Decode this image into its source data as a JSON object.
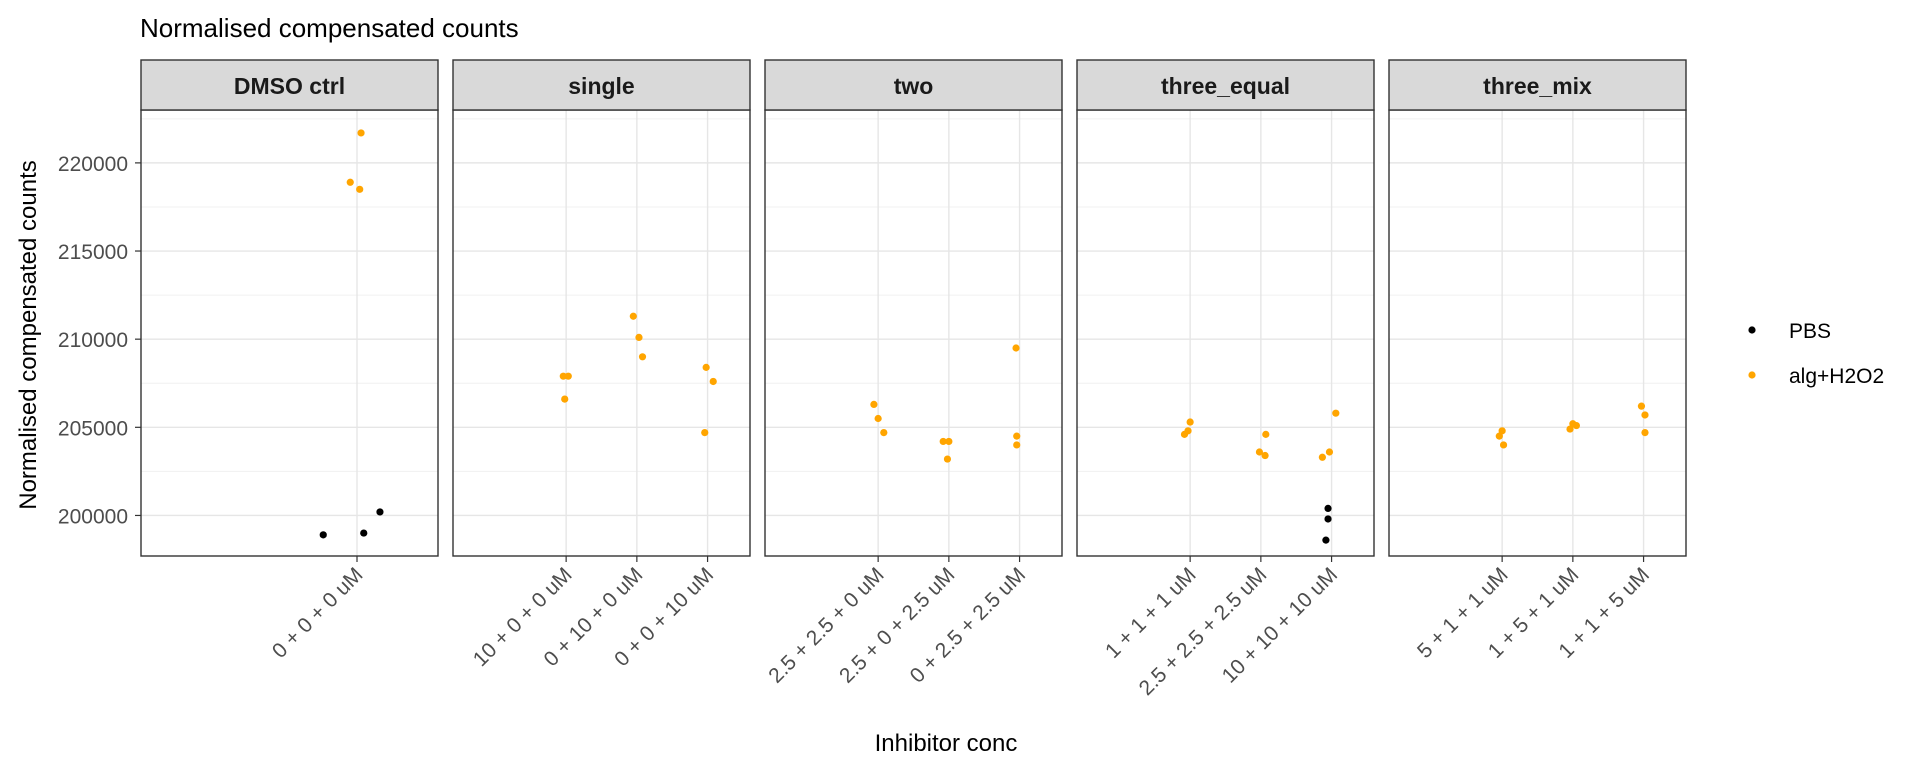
{
  "chart_data": {
    "type": "scatter",
    "title": "Normalised compensated counts",
    "xlabel": "Inhibitor conc",
    "ylabel": "Normalised compensated counts",
    "ylim": [
      197700,
      223000
    ],
    "yticks": [
      200000,
      205000,
      210000,
      215000,
      220000
    ],
    "y_tick_labels": [
      "200000",
      "205000",
      "210000",
      "215000",
      "220000"
    ],
    "grid": true,
    "legend": {
      "placement": "right",
      "entries": [
        {
          "name": "PBS",
          "color": "#000000"
        },
        {
          "name": "alg+H2O2",
          "color": "#FFA500"
        }
      ]
    },
    "facets": [
      {
        "label": "DMSO ctrl",
        "categories": [
          "0 + 0 + 0 uM"
        ],
        "series": [
          {
            "name": "PBS",
            "points": [
              {
                "category": "0 + 0 + 0 uM",
                "jitter": -0.25,
                "y": 198900
              },
              {
                "category": "0 + 0 + 0 uM",
                "jitter": 0.05,
                "y": 199000
              },
              {
                "category": "0 + 0 + 0 uM",
                "jitter": 0.17,
                "y": 200200
              }
            ]
          },
          {
            "name": "alg+H2O2",
            "points": [
              {
                "category": "0 + 0 + 0 uM",
                "jitter": -0.05,
                "y": 218900
              },
              {
                "category": "0 + 0 + 0 uM",
                "jitter": 0.02,
                "y": 218500
              },
              {
                "category": "0 + 0 + 0 uM",
                "jitter": 0.03,
                "y": 221700
              }
            ]
          }
        ]
      },
      {
        "label": "single",
        "categories": [
          "10 + 0 + 0 uM",
          "0 + 10 + 0 uM",
          "0 + 0 + 10 uM"
        ],
        "series": [
          {
            "name": "alg+H2O2",
            "points": [
              {
                "category": "10 + 0 + 0 uM",
                "jitter": -0.04,
                "y": 207900
              },
              {
                "category": "10 + 0 + 0 uM",
                "jitter": 0.03,
                "y": 207900
              },
              {
                "category": "10 + 0 + 0 uM",
                "jitter": -0.02,
                "y": 206600
              },
              {
                "category": "0 + 10 + 0 uM",
                "jitter": -0.05,
                "y": 211300
              },
              {
                "category": "0 + 10 + 0 uM",
                "jitter": 0.03,
                "y": 210100
              },
              {
                "category": "0 + 10 + 0 uM",
                "jitter": 0.08,
                "y": 209000
              },
              {
                "category": "0 + 0 + 10 uM",
                "jitter": -0.04,
                "y": 204700
              },
              {
                "category": "0 + 0 + 10 uM",
                "jitter": -0.02,
                "y": 208400
              },
              {
                "category": "0 + 0 + 10 uM",
                "jitter": 0.08,
                "y": 207600
              }
            ]
          }
        ]
      },
      {
        "label": "two",
        "categories": [
          "2.5 + 2.5 + 0 uM",
          "2.5 + 0 + 2.5 uM",
          "0 + 2.5 + 2.5 uM"
        ],
        "series": [
          {
            "name": "alg+H2O2",
            "points": [
              {
                "category": "2.5 + 2.5 + 0 uM",
                "jitter": -0.06,
                "y": 206300
              },
              {
                "category": "2.5 + 2.5 + 0 uM",
                "jitter": 0.0,
                "y": 205500
              },
              {
                "category": "2.5 + 2.5 + 0 uM",
                "jitter": 0.08,
                "y": 204700
              },
              {
                "category": "2.5 + 0 + 2.5 uM",
                "jitter": -0.08,
                "y": 204200
              },
              {
                "category": "2.5 + 0 + 2.5 uM",
                "jitter": 0.0,
                "y": 204200
              },
              {
                "category": "2.5 + 0 + 2.5 uM",
                "jitter": -0.02,
                "y": 203200
              },
              {
                "category": "0 + 2.5 + 2.5 uM",
                "jitter": -0.05,
                "y": 209500
              },
              {
                "category": "0 + 2.5 + 2.5 uM",
                "jitter": -0.04,
                "y": 204500
              },
              {
                "category": "0 + 2.5 + 2.5 uM",
                "jitter": -0.04,
                "y": 204000
              }
            ]
          }
        ]
      },
      {
        "label": "three_equal",
        "categories": [
          "1 + 1 + 1 uM",
          "2.5 + 2.5 + 2.5 uM",
          "10 + 10 + 10 uM"
        ],
        "series": [
          {
            "name": "alg+H2O2",
            "points": [
              {
                "category": "1 + 1 + 1 uM",
                "jitter": -0.08,
                "y": 204600
              },
              {
                "category": "1 + 1 + 1 uM",
                "jitter": -0.03,
                "y": 204800
              },
              {
                "category": "1 + 1 + 1 uM",
                "jitter": 0.0,
                "y": 205300
              },
              {
                "category": "2.5 + 2.5 + 2.5 uM",
                "jitter": -0.02,
                "y": 203600
              },
              {
                "category": "2.5 + 2.5 + 2.5 uM",
                "jitter": 0.06,
                "y": 203400
              },
              {
                "category": "2.5 + 2.5 + 2.5 uM",
                "jitter": 0.07,
                "y": 204600
              },
              {
                "category": "10 + 10 + 10 uM",
                "jitter": -0.13,
                "y": 203300
              },
              {
                "category": "10 + 10 + 10 uM",
                "jitter": -0.03,
                "y": 203600
              },
              {
                "category": "10 + 10 + 10 uM",
                "jitter": 0.06,
                "y": 205800
              }
            ]
          },
          {
            "name": "PBS",
            "points": [
              {
                "category": "10 + 10 + 10 uM",
                "jitter": -0.08,
                "y": 198600
              },
              {
                "category": "10 + 10 + 10 uM",
                "jitter": -0.05,
                "y": 199800
              },
              {
                "category": "10 + 10 + 10 uM",
                "jitter": -0.05,
                "y": 200400
              }
            ]
          }
        ]
      },
      {
        "label": "three_mix",
        "categories": [
          "5 + 1 + 1 uM",
          "1 + 5 + 1 uM",
          "1 + 1 + 5 uM"
        ],
        "series": [
          {
            "name": "alg+H2O2",
            "points": [
              {
                "category": "5 + 1 + 1 uM",
                "jitter": -0.04,
                "y": 204500
              },
              {
                "category": "5 + 1 + 1 uM",
                "jitter": 0.0,
                "y": 204800
              },
              {
                "category": "5 + 1 + 1 uM",
                "jitter": 0.02,
                "y": 204000
              },
              {
                "category": "1 + 5 + 1 uM",
                "jitter": -0.04,
                "y": 204900
              },
              {
                "category": "1 + 5 + 1 uM",
                "jitter": 0.0,
                "y": 205200
              },
              {
                "category": "1 + 5 + 1 uM",
                "jitter": 0.05,
                "y": 205100
              },
              {
                "category": "1 + 1 + 5 uM",
                "jitter": -0.03,
                "y": 206200
              },
              {
                "category": "1 + 1 + 5 uM",
                "jitter": 0.02,
                "y": 205700
              },
              {
                "category": "1 + 1 + 5 uM",
                "jitter": 0.02,
                "y": 204700
              }
            ]
          }
        ]
      }
    ]
  }
}
